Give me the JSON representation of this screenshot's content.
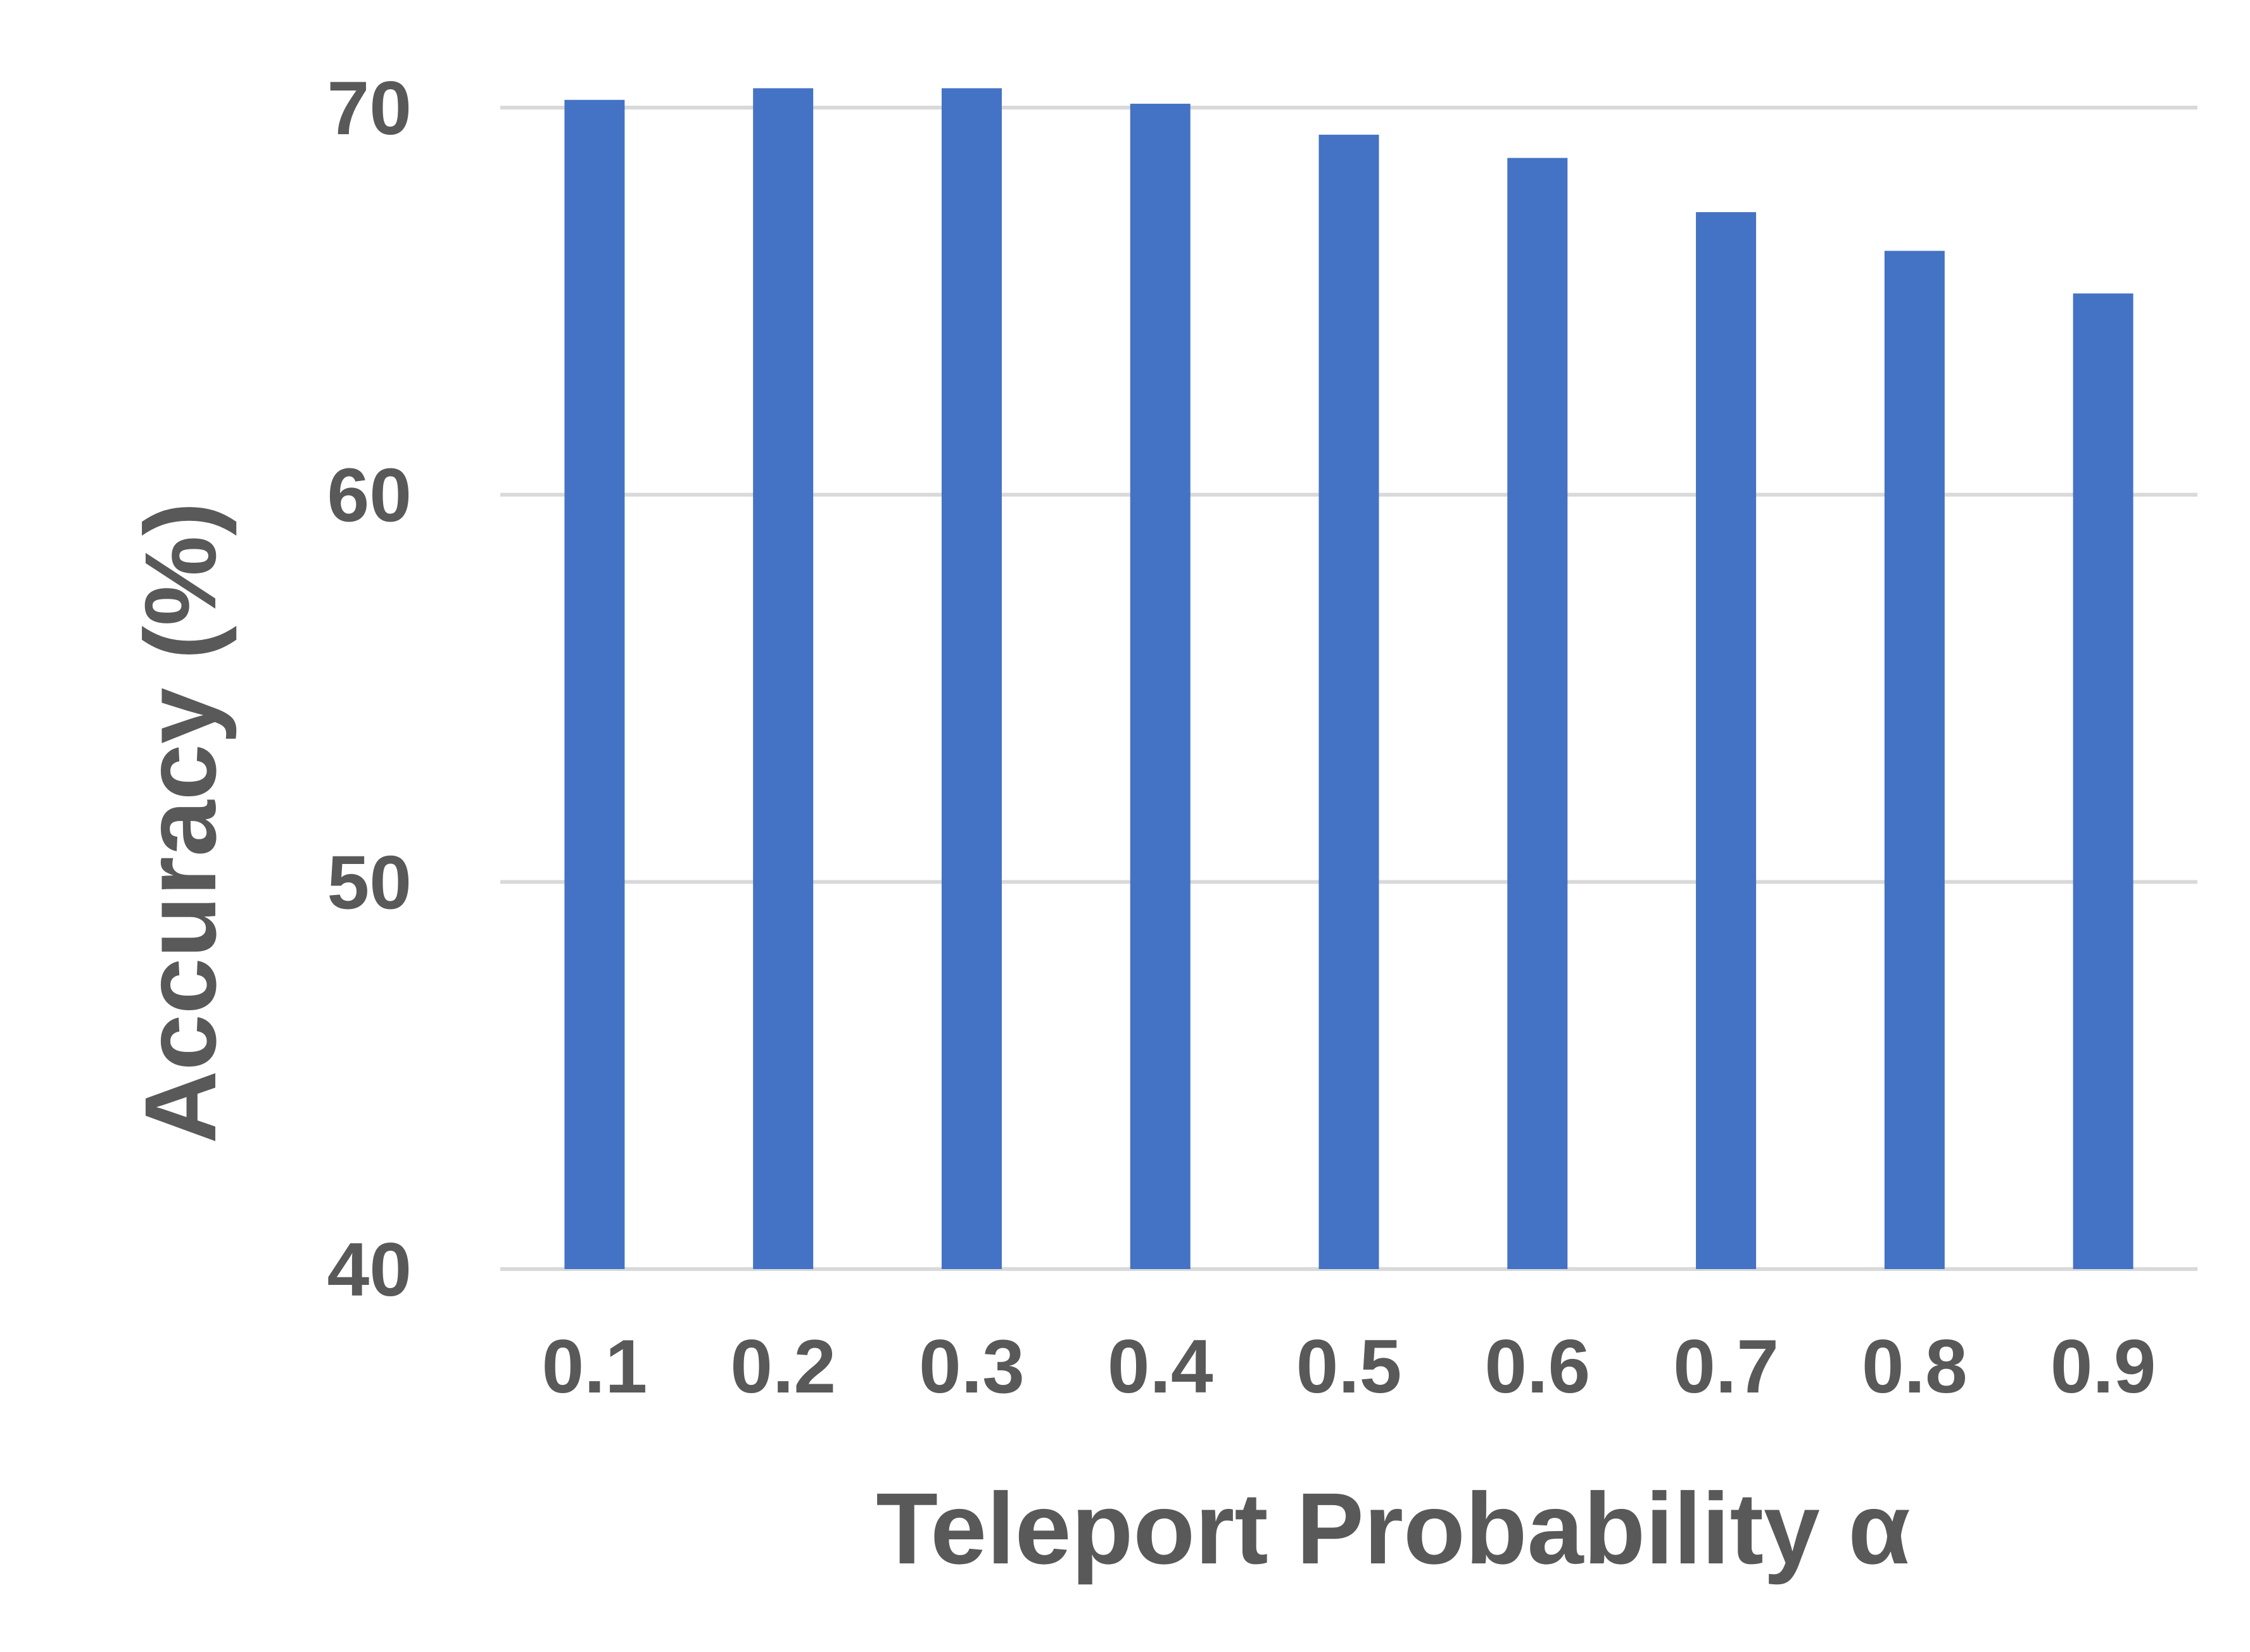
{
  "chart_data": {
    "type": "bar",
    "categories": [
      "0.1",
      "0.2",
      "0.3",
      "0.4",
      "0.5",
      "0.6",
      "0.7",
      "0.8",
      "0.9"
    ],
    "values": [
      70.2,
      70.5,
      70.5,
      70.1,
      69.3,
      68.7,
      67.3,
      66.3,
      65.2
    ],
    "xlabel": "Teleport Probability α",
    "ylabel": "Accuracy (%)",
    "ylim": [
      40,
      70
    ],
    "yticks": [
      40,
      50,
      60,
      70
    ],
    "grid": true,
    "legend": "none",
    "colors": {
      "bar": "#4472C4",
      "grid": "#D9D9D9",
      "text": "#595959"
    }
  }
}
